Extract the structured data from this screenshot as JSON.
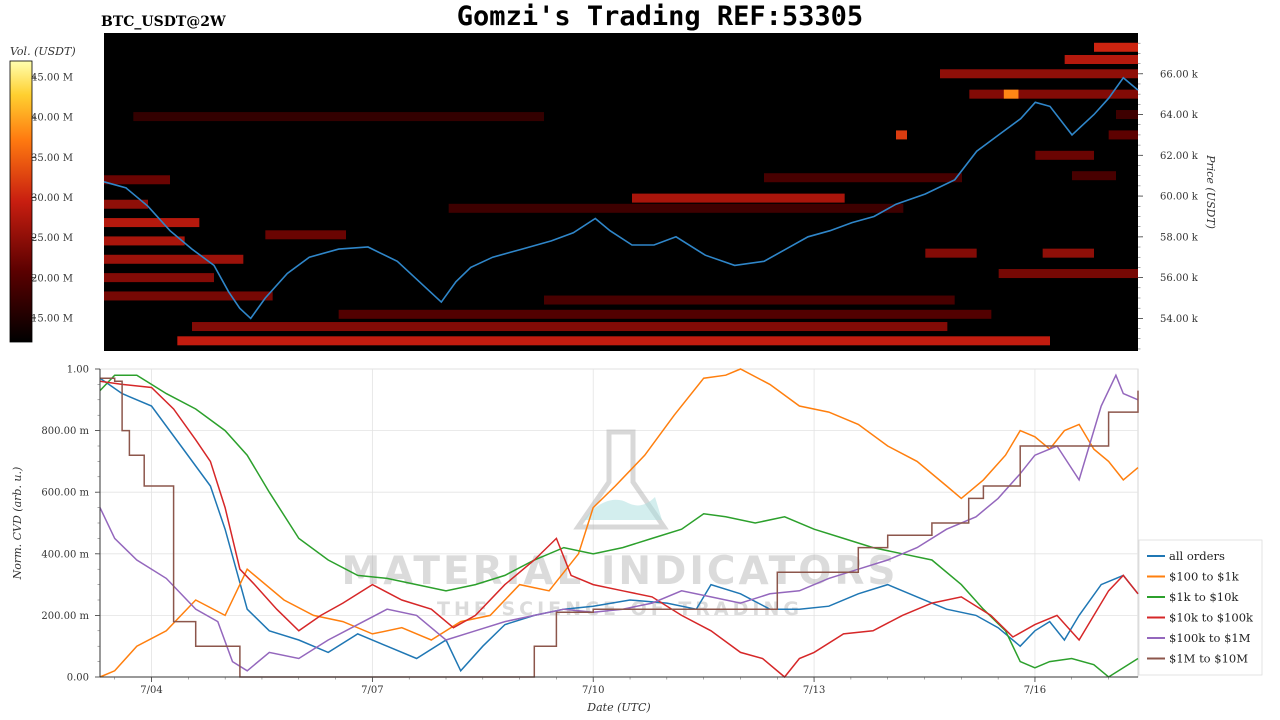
{
  "header": {
    "title": "Gomzi's Trading REF:53305",
    "pair_label": "BTC_USDT@2W"
  },
  "watermark": {
    "line1": "MATERIAL INDICATORS",
    "line2": "THE SCIENCE OF TRADING"
  },
  "colorbar": {
    "label": "Vol. (USDT)",
    "ticks": [
      "45.00 M",
      "40.00 M",
      "35.00 M",
      "30.00 M",
      "25.00 M",
      "20.00 M",
      "15.00 M"
    ],
    "values": [
      45,
      40,
      35,
      30,
      25,
      20,
      15
    ],
    "range": [
      12,
      47
    ]
  },
  "chart_data": [
    {
      "type": "heatmap",
      "ylabel": "Price (USDT)",
      "ylim": [
        52.4,
        68.0
      ],
      "y_ticks": [
        "66.00 k",
        "64.00 k",
        "62.00 k",
        "60.00 k",
        "58.00 k",
        "56.00 k",
        "54.00 k"
      ],
      "y_tick_values": [
        66,
        64,
        62,
        60,
        58,
        56,
        54
      ],
      "x_range_days": [
        3.3,
        17.4
      ],
      "price_series_color": "#2f86c9",
      "price_series": {
        "x": [
          3.3,
          3.6,
          3.9,
          4.2,
          4.5,
          4.8,
          5.0,
          5.15,
          5.3,
          5.5,
          5.8,
          6.1,
          6.5,
          6.9,
          7.3,
          7.6,
          7.9,
          8.1,
          8.3,
          8.6,
          9.0,
          9.4,
          9.7,
          10.0,
          10.2,
          10.5,
          10.8,
          11.1,
          11.5,
          11.9,
          12.3,
          12.6,
          12.9,
          13.2,
          13.5,
          13.8,
          14.1,
          14.5,
          14.9,
          15.2,
          15.5,
          15.8,
          16.0,
          16.2,
          16.5,
          16.8,
          17.0,
          17.2,
          17.4
        ],
        "y": [
          60.7,
          60.4,
          59.5,
          58.3,
          57.4,
          56.6,
          55.3,
          54.5,
          54.0,
          55.0,
          56.2,
          57.0,
          57.4,
          57.5,
          56.8,
          55.8,
          54.8,
          55.8,
          56.5,
          57.0,
          57.4,
          57.8,
          58.2,
          58.9,
          58.3,
          57.6,
          57.6,
          58.0,
          57.1,
          56.6,
          56.8,
          57.4,
          58.0,
          58.3,
          58.7,
          59.0,
          59.6,
          60.1,
          60.8,
          62.2,
          63.0,
          63.8,
          64.6,
          64.4,
          63.0,
          64.0,
          64.8,
          65.8,
          65.2
        ]
      },
      "volume_bands": [
        {
          "price": 60.8,
          "x0": 3.3,
          "x1": 4.2,
          "vol": 22
        },
        {
          "price": 59.6,
          "x0": 3.3,
          "x1": 3.9,
          "vol": 25
        },
        {
          "price": 58.7,
          "x0": 3.3,
          "x1": 4.6,
          "vol": 28
        },
        {
          "price": 57.8,
          "x0": 3.3,
          "x1": 4.4,
          "vol": 27
        },
        {
          "price": 56.9,
          "x0": 3.3,
          "x1": 5.2,
          "vol": 26
        },
        {
          "price": 56.0,
          "x0": 3.3,
          "x1": 4.8,
          "vol": 24
        },
        {
          "price": 55.1,
          "x0": 3.3,
          "x1": 5.6,
          "vol": 23
        },
        {
          "price": 53.6,
          "x0": 4.5,
          "x1": 14.8,
          "vol": 24
        },
        {
          "price": 52.9,
          "x0": 4.3,
          "x1": 16.2,
          "vol": 29
        },
        {
          "price": 54.2,
          "x0": 6.5,
          "x1": 15.4,
          "vol": 20
        },
        {
          "price": 54.9,
          "x0": 9.3,
          "x1": 14.9,
          "vol": 19
        },
        {
          "price": 63.9,
          "x0": 3.7,
          "x1": 9.3,
          "vol": 17
        },
        {
          "price": 59.9,
          "x0": 10.5,
          "x1": 13.4,
          "vol": 27
        },
        {
          "price": 59.4,
          "x0": 8.0,
          "x1": 14.2,
          "vol": 18
        },
        {
          "price": 60.9,
          "x0": 12.3,
          "x1": 15.0,
          "vol": 19
        },
        {
          "price": 58.1,
          "x0": 5.5,
          "x1": 6.6,
          "vol": 22
        },
        {
          "price": 57.2,
          "x0": 14.5,
          "x1": 15.2,
          "vol": 24
        },
        {
          "price": 56.2,
          "x0": 15.5,
          "x1": 17.4,
          "vol": 23
        },
        {
          "price": 57.2,
          "x0": 16.1,
          "x1": 16.8,
          "vol": 25
        },
        {
          "price": 66.0,
          "x0": 14.7,
          "x1": 17.4,
          "vol": 25
        },
        {
          "price": 66.7,
          "x0": 16.4,
          "x1": 17.4,
          "vol": 28
        },
        {
          "price": 67.3,
          "x0": 16.8,
          "x1": 17.4,
          "vol": 30
        },
        {
          "price": 65.0,
          "x0": 15.1,
          "x1": 17.4,
          "vol": 24
        },
        {
          "price": 62.0,
          "x0": 16.0,
          "x1": 16.8,
          "vol": 22
        },
        {
          "price": 61.0,
          "x0": 16.5,
          "x1": 17.1,
          "vol": 19
        },
        {
          "price": 63.0,
          "x0": 17.0,
          "x1": 17.4,
          "vol": 21
        },
        {
          "price": 64.0,
          "x0": 17.1,
          "x1": 17.4,
          "vol": 18
        }
      ],
      "hot_spots": [
        {
          "price": 65.0,
          "x0": 15.57,
          "x1": 15.77,
          "vol": 38
        },
        {
          "price": 63.0,
          "x0": 14.1,
          "x1": 14.25,
          "vol": 32
        }
      ]
    },
    {
      "type": "line",
      "xlabel": "Date (UTC)",
      "ylabel": "Norm. CVD (arb. u.)",
      "xlim": [
        3.3,
        17.4
      ],
      "ylim": [
        0,
        1.0
      ],
      "x_ticks": [
        "7/04",
        "7/07",
        "7/10",
        "7/13",
        "7/16"
      ],
      "x_tick_values": [
        4,
        7,
        10,
        13,
        16
      ],
      "y_ticks": [
        "0.00",
        "200.00 m",
        "400.00 m",
        "600.00 m",
        "800.00 m",
        "1.00"
      ],
      "y_tick_values": [
        0,
        0.2,
        0.4,
        0.6,
        0.8,
        1.0
      ],
      "series": [
        {
          "name": "all orders",
          "color": "#1f77b4",
          "x": [
            3.3,
            3.6,
            4.0,
            4.4,
            4.8,
            5.0,
            5.3,
            5.6,
            6.0,
            6.4,
            6.8,
            7.2,
            7.6,
            8.0,
            8.2,
            8.5,
            8.8,
            9.2,
            9.6,
            10.0,
            10.5,
            11.0,
            11.4,
            11.6,
            12.0,
            12.4,
            12.8,
            13.2,
            13.6,
            14.0,
            14.4,
            14.8,
            15.2,
            15.5,
            15.8,
            16.0,
            16.2,
            16.4,
            16.6,
            16.9,
            17.2,
            17.4
          ],
          "y": [
            0.97,
            0.92,
            0.88,
            0.75,
            0.62,
            0.48,
            0.22,
            0.15,
            0.12,
            0.08,
            0.14,
            0.1,
            0.06,
            0.12,
            0.02,
            0.1,
            0.17,
            0.2,
            0.22,
            0.23,
            0.25,
            0.24,
            0.22,
            0.3,
            0.27,
            0.22,
            0.22,
            0.23,
            0.27,
            0.3,
            0.26,
            0.22,
            0.2,
            0.16,
            0.1,
            0.15,
            0.18,
            0.12,
            0.2,
            0.3,
            0.33,
            0.27
          ]
        },
        {
          "name": "$100 to $1k",
          "color": "#ff7f0e",
          "x": [
            3.3,
            3.5,
            3.8,
            4.2,
            4.6,
            5.0,
            5.3,
            5.8,
            6.2,
            6.6,
            7.0,
            7.4,
            7.8,
            8.2,
            8.6,
            9.0,
            9.4,
            9.8,
            10.0,
            10.3,
            10.7,
            11.1,
            11.5,
            11.8,
            12.0,
            12.4,
            12.8,
            13.2,
            13.6,
            14.0,
            14.4,
            14.8,
            15.0,
            15.3,
            15.6,
            15.8,
            16.0,
            16.2,
            16.4,
            16.6,
            16.8,
            17.0,
            17.2,
            17.4
          ],
          "y": [
            0.0,
            0.02,
            0.1,
            0.15,
            0.25,
            0.2,
            0.35,
            0.25,
            0.2,
            0.18,
            0.14,
            0.16,
            0.12,
            0.18,
            0.2,
            0.3,
            0.28,
            0.4,
            0.55,
            0.62,
            0.72,
            0.85,
            0.97,
            0.98,
            1.0,
            0.95,
            0.88,
            0.86,
            0.82,
            0.75,
            0.7,
            0.62,
            0.58,
            0.64,
            0.72,
            0.8,
            0.78,
            0.74,
            0.8,
            0.82,
            0.74,
            0.7,
            0.64,
            0.68
          ]
        },
        {
          "name": "$1k to $10k",
          "color": "#2ca02c",
          "x": [
            3.3,
            3.5,
            3.8,
            4.2,
            4.6,
            5.0,
            5.3,
            5.6,
            6.0,
            6.4,
            6.8,
            7.2,
            7.6,
            8.0,
            8.4,
            8.8,
            9.2,
            9.6,
            10.0,
            10.4,
            10.8,
            11.2,
            11.5,
            11.8,
            12.2,
            12.6,
            13.0,
            13.4,
            13.8,
            14.2,
            14.6,
            15.0,
            15.3,
            15.6,
            15.8,
            16.0,
            16.2,
            16.5,
            16.8,
            17.0,
            17.2,
            17.4
          ],
          "y": [
            0.93,
            0.98,
            0.98,
            0.92,
            0.87,
            0.8,
            0.72,
            0.6,
            0.45,
            0.38,
            0.33,
            0.32,
            0.3,
            0.28,
            0.3,
            0.33,
            0.38,
            0.42,
            0.4,
            0.42,
            0.45,
            0.48,
            0.53,
            0.52,
            0.5,
            0.52,
            0.48,
            0.45,
            0.42,
            0.4,
            0.38,
            0.3,
            0.22,
            0.15,
            0.05,
            0.03,
            0.05,
            0.06,
            0.04,
            0.0,
            0.03,
            0.06
          ]
        },
        {
          "name": "$10k to $100k",
          "color": "#d62728",
          "x": [
            3.3,
            3.6,
            4.0,
            4.3,
            4.6,
            4.8,
            5.0,
            5.2,
            5.4,
            5.7,
            6.0,
            6.3,
            6.6,
            7.0,
            7.4,
            7.8,
            8.1,
            8.4,
            8.8,
            9.2,
            9.5,
            9.7,
            10.0,
            10.4,
            10.8,
            11.2,
            11.6,
            12.0,
            12.3,
            12.6,
            12.8,
            13.0,
            13.4,
            13.8,
            14.2,
            14.6,
            15.0,
            15.4,
            15.7,
            16.0,
            16.3,
            16.6,
            17.0,
            17.2,
            17.4
          ],
          "y": [
            0.96,
            0.95,
            0.94,
            0.87,
            0.77,
            0.7,
            0.55,
            0.35,
            0.3,
            0.22,
            0.15,
            0.2,
            0.24,
            0.3,
            0.25,
            0.22,
            0.16,
            0.2,
            0.3,
            0.38,
            0.45,
            0.33,
            0.3,
            0.28,
            0.26,
            0.2,
            0.15,
            0.08,
            0.06,
            0.0,
            0.06,
            0.08,
            0.14,
            0.15,
            0.2,
            0.24,
            0.26,
            0.2,
            0.13,
            0.17,
            0.2,
            0.12,
            0.28,
            0.33,
            0.27
          ]
        },
        {
          "name": "$100k to $1M",
          "color": "#9467bd",
          "x": [
            3.3,
            3.5,
            3.8,
            4.2,
            4.6,
            4.9,
            5.1,
            5.3,
            5.6,
            6.0,
            6.4,
            6.8,
            7.2,
            7.6,
            8.0,
            8.4,
            8.8,
            9.2,
            9.6,
            10.0,
            10.4,
            10.8,
            11.2,
            11.6,
            12.0,
            12.4,
            12.8,
            13.2,
            13.6,
            14.0,
            14.4,
            14.8,
            15.2,
            15.5,
            15.8,
            16.0,
            16.3,
            16.6,
            16.9,
            17.1,
            17.2,
            17.4
          ],
          "y": [
            0.55,
            0.45,
            0.38,
            0.32,
            0.22,
            0.18,
            0.05,
            0.02,
            0.08,
            0.06,
            0.12,
            0.17,
            0.22,
            0.2,
            0.12,
            0.15,
            0.18,
            0.2,
            0.22,
            0.21,
            0.22,
            0.24,
            0.28,
            0.26,
            0.24,
            0.27,
            0.28,
            0.32,
            0.35,
            0.38,
            0.42,
            0.48,
            0.52,
            0.58,
            0.66,
            0.72,
            0.75,
            0.64,
            0.88,
            0.98,
            0.92,
            0.9
          ]
        },
        {
          "name": "$1M to $10M",
          "color": "#8c564b",
          "step": true,
          "x": [
            3.3,
            3.5,
            3.6,
            3.7,
            3.9,
            4.3,
            4.6,
            5.0,
            5.2,
            5.4,
            5.9,
            8.8,
            9.2,
            9.5,
            10.0,
            12.1,
            12.5,
            13.6,
            14.0,
            14.6,
            15.1,
            15.3,
            15.8,
            16.2,
            16.7,
            17.0,
            17.3,
            17.4
          ],
          "y": [
            0.97,
            0.96,
            0.8,
            0.72,
            0.62,
            0.18,
            0.1,
            0.1,
            0.0,
            0.0,
            0.0,
            0.0,
            0.1,
            0.21,
            0.22,
            0.22,
            0.34,
            0.42,
            0.46,
            0.5,
            0.58,
            0.62,
            0.75,
            0.75,
            0.75,
            0.86,
            0.86,
            0.93
          ]
        }
      ],
      "legend_position": "right"
    }
  ]
}
